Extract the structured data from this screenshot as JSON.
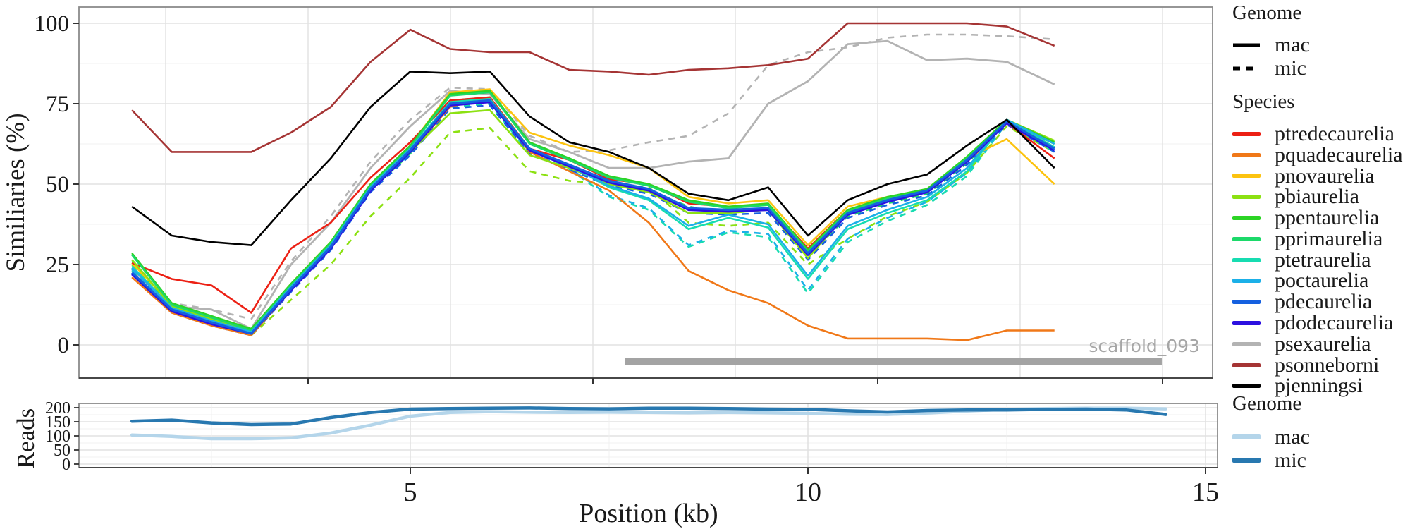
{
  "figure_title": "",
  "axes": {
    "main_panel": {
      "ylabel": "Similiaries (%)",
      "y_tick_labels": [
        "100",
        "75",
        "50",
        "25",
        "0"
      ]
    },
    "reads_panel": {
      "ylabel": "Reads",
      "y_tick_labels": [
        "200",
        "150",
        "100",
        "50",
        "0"
      ],
      "x_tick_labels": [
        "5",
        "10",
        "15"
      ],
      "xlabel": "Position (kb)"
    }
  },
  "legends": {
    "genome_top": {
      "title": "Genome",
      "items": [
        {
          "label": "mac",
          "style": "solid",
          "color": "#000000"
        },
        {
          "label": "mic",
          "style": "dashed",
          "color": "#000000"
        }
      ]
    },
    "species": {
      "title": "Species",
      "items": [
        {
          "label": "ptredecaurelia",
          "color": "#ec2014"
        },
        {
          "label": "pquadecaurelia",
          "color": "#f07818"
        },
        {
          "label": "pnovaurelia",
          "color": "#fcc30f"
        },
        {
          "label": "pbiaurelia",
          "color": "#8ce112"
        },
        {
          "label": "ppentaurelia",
          "color": "#2cd425"
        },
        {
          "label": "pprimaurelia",
          "color": "#1cd96a"
        },
        {
          "label": "ptetraurelia",
          "color": "#17dcb1"
        },
        {
          "label": "poctaurelia",
          "color": "#1bb0e8"
        },
        {
          "label": "pdecaurelia",
          "color": "#1560e0"
        },
        {
          "label": "pdodecaurelia",
          "color": "#2c10e0"
        },
        {
          "label": "psexaurelia",
          "color": "#b3b3b3"
        },
        {
          "label": "psonneborni",
          "color": "#a53434"
        },
        {
          "label": "pjenningsi",
          "color": "#000000"
        }
      ]
    },
    "genome_bottom": {
      "title": "Genome",
      "items": [
        {
          "label": "mac",
          "color": "#b4d5ea"
        },
        {
          "label": "mic",
          "color": "#2878b0"
        }
      ]
    }
  },
  "chart_data": [
    {
      "type": "line",
      "panel": "similarity",
      "ylabel": "Similiaries (%)",
      "ylim": [
        0,
        100
      ],
      "grid": true,
      "legend_position": "right",
      "annotation": {
        "label": "scaffold_093",
        "start_kb": 7.7,
        "end_kb": 14.45,
        "color": "#a3a3a3"
      },
      "x": [
        1.5,
        2,
        2.5,
        3,
        3.5,
        4,
        4.5,
        5,
        5.5,
        6,
        6.5,
        7,
        7.5,
        8,
        8.5,
        9,
        9.5,
        10,
        10.5,
        11,
        11.5,
        12,
        12.5,
        13.1
      ],
      "series": [
        {
          "name": "psexaurelia",
          "genome": "mic",
          "color": "#b3b3b3",
          "dashed": true,
          "width": 2.6,
          "values": [
            23,
            13,
            11,
            8,
            26,
            40,
            57,
            70,
            80,
            79.5,
            65,
            60,
            60.5,
            63,
            65,
            72,
            87,
            91,
            92.5,
            95.5,
            96.5,
            96.5,
            96,
            95
          ]
        },
        {
          "name": "psexaurelia",
          "genome": "mac",
          "color": "#b3b3b3",
          "dashed": false,
          "width": 2.8,
          "values": [
            23.5,
            12,
            11,
            5,
            25,
            38,
            55,
            68,
            79,
            78,
            64,
            60,
            55,
            55,
            57,
            58,
            75,
            82,
            93.5,
            94.5,
            88.5,
            89,
            88,
            81
          ]
        },
        {
          "name": "pbiaurelia",
          "genome": "mic",
          "color": "#8ce112",
          "dashed": true,
          "width": 2.6,
          "values": [
            25,
            11,
            7.5,
            3,
            14,
            25,
            40,
            52,
            66,
            67.5,
            54,
            51,
            50,
            49,
            38,
            37,
            38,
            25,
            33,
            40,
            44.5,
            53.5,
            68,
            60
          ]
        },
        {
          "name": "pprimaurelia",
          "genome": "mic",
          "color": "#1cd96a",
          "dashed": true,
          "width": 2.6,
          "values": [
            26,
            11,
            7,
            3,
            17,
            30,
            48,
            59.5,
            76,
            77,
            61,
            56,
            50.5,
            48,
            43,
            41,
            42,
            27.5,
            40,
            44,
            47,
            56.5,
            69,
            61.5
          ]
        },
        {
          "name": "ptetraurelia",
          "genome": "mic",
          "color": "#17dcb1",
          "dashed": true,
          "width": 2.6,
          "values": [
            23,
            10.5,
            6.5,
            3.5,
            17,
            30,
            48,
            59.5,
            74,
            75,
            59.5,
            54.5,
            46,
            42,
            30.5,
            35,
            33.5,
            16,
            32,
            38.5,
            43.5,
            52.5,
            69,
            60
          ]
        },
        {
          "name": "poctaurelia",
          "genome": "mic",
          "color": "#1bb0e8",
          "dashed": true,
          "width": 2.6,
          "values": [
            23.5,
            10.5,
            6.5,
            3.5,
            17,
            30,
            48,
            59.5,
            74.5,
            75.5,
            60,
            55,
            46.5,
            42.5,
            31,
            35.5,
            34.5,
            17,
            33,
            39.5,
            44.5,
            53.5,
            69,
            61
          ]
        },
        {
          "name": "pdecaurelia",
          "genome": "mic",
          "color": "#1560e0",
          "dashed": true,
          "width": 2.6,
          "values": [
            22,
            10,
            6,
            3,
            16.5,
            29.5,
            47.5,
            59,
            73.5,
            74.5,
            59.5,
            54.5,
            49.5,
            47,
            41,
            40.5,
            41,
            26.5,
            39.5,
            43.5,
            46.5,
            56,
            68.5,
            60
          ]
        },
        {
          "name": "pquadecaurelia",
          "genome": "mac",
          "color": "#f07818",
          "dashed": false,
          "width": 2.6,
          "values": [
            21,
            10,
            6,
            3,
            17,
            30,
            48,
            60,
            74,
            77,
            60,
            54,
            48,
            38,
            23,
            17,
            13,
            6,
            2,
            2,
            2,
            1.5,
            4.5,
            4.5
          ]
        },
        {
          "name": "pnovaurelia",
          "genome": "mac",
          "color": "#fcc30f",
          "dashed": false,
          "width": 2.6,
          "values": [
            25.5,
            12.5,
            8.5,
            4.5,
            19,
            32,
            50,
            62,
            78.5,
            79.5,
            66,
            62,
            59,
            55,
            46,
            44,
            45,
            31,
            43,
            46,
            48,
            58,
            64,
            50
          ]
        },
        {
          "name": "ptredecaurelia",
          "genome": "mac",
          "color": "#ec2014",
          "dashed": false,
          "width": 2.6,
          "values": [
            25.5,
            20.5,
            18.5,
            10,
            30,
            38,
            52,
            63,
            76,
            77,
            61,
            57.5,
            51.5,
            50,
            44,
            43,
            43.5,
            30,
            42,
            45.5,
            48,
            58,
            69,
            58
          ]
        },
        {
          "name": "pbiaurelia",
          "genome": "mac",
          "color": "#8ce112",
          "dashed": false,
          "width": 2.6,
          "values": [
            26.5,
            12,
            8,
            4.5,
            18,
            31,
            49,
            60,
            72,
            73,
            59,
            55,
            50,
            47.5,
            41,
            41,
            42,
            27,
            41,
            45,
            48,
            57,
            70,
            63.5
          ]
        },
        {
          "name": "ppentaurelia",
          "genome": "mac",
          "color": "#2cd425",
          "dashed": false,
          "width": 2.6,
          "values": [
            28.5,
            13,
            9,
            5,
            19,
            32,
            50,
            62,
            78,
            79,
            63,
            58,
            52.5,
            50,
            45,
            43,
            44,
            29.5,
            42,
            46,
            48.5,
            58.5,
            70,
            63
          ]
        },
        {
          "name": "pprimaurelia",
          "genome": "mac",
          "color": "#1cd96a",
          "dashed": false,
          "width": 2.6,
          "values": [
            28,
            12.5,
            8.5,
            4.5,
            18.5,
            31.5,
            49.5,
            61.5,
            77.5,
            78.5,
            62.5,
            57.5,
            52,
            49.5,
            44.5,
            42.5,
            43.5,
            29,
            41.5,
            45.5,
            48,
            58,
            69.5,
            62.5
          ]
        },
        {
          "name": "ptetraurelia",
          "genome": "mac",
          "color": "#17dcb1",
          "dashed": false,
          "width": 2.6,
          "values": [
            24.5,
            11.5,
            7.5,
            4,
            18,
            31,
            49,
            61,
            75.5,
            76.5,
            61,
            56,
            49,
            45,
            36,
            39.5,
            36.5,
            20.5,
            36,
            41,
            45,
            54,
            70,
            61.5
          ]
        },
        {
          "name": "poctaurelia",
          "genome": "mac",
          "color": "#1bb0e8",
          "dashed": false,
          "width": 2.6,
          "values": [
            24,
            11.5,
            7.5,
            4,
            18,
            31,
            49,
            61,
            75,
            76,
            60.5,
            55.5,
            49.5,
            45.5,
            37,
            40.5,
            37.5,
            21.5,
            37,
            42,
            46,
            55,
            70,
            62.5
          ]
        },
        {
          "name": "pdodecaurelia",
          "genome": "mac",
          "color": "#2c10e0",
          "dashed": false,
          "width": 3.2,
          "values": [
            22,
            10.5,
            6.5,
            3.5,
            17,
            30,
            48,
            60,
            74.5,
            75.5,
            60.5,
            55.5,
            50.5,
            48,
            42,
            41.5,
            42,
            28,
            40.5,
            44.5,
            47.5,
            57,
            69,
            60.5
          ]
        },
        {
          "name": "pdecaurelia",
          "genome": "mac",
          "color": "#1560e0",
          "dashed": false,
          "width": 3.2,
          "values": [
            22.5,
            11,
            7,
            3.5,
            17.5,
            30.5,
            48.5,
            60.5,
            75,
            76,
            61,
            56,
            51,
            48.5,
            42.5,
            42,
            42.5,
            28.5,
            41,
            45,
            48,
            57.5,
            69.5,
            61
          ]
        },
        {
          "name": "pjenningsi",
          "genome": "mac",
          "color": "#000000",
          "dashed": false,
          "width": 2.6,
          "values": [
            43,
            34,
            32,
            31,
            45,
            58,
            74,
            85,
            84.5,
            85,
            71,
            63,
            60,
            55,
            47,
            45,
            49,
            34,
            45,
            50,
            53,
            62,
            70,
            55
          ]
        },
        {
          "name": "psonneborni",
          "genome": "mac",
          "color": "#a53434",
          "dashed": false,
          "width": 2.6,
          "values": [
            73,
            60,
            60,
            60,
            66,
            74,
            88,
            98,
            92,
            91,
            91,
            85.5,
            85,
            84,
            85.5,
            86,
            87,
            89,
            100,
            100,
            100,
            100,
            99,
            93
          ]
        }
      ]
    },
    {
      "type": "line",
      "panel": "reads",
      "ylabel": "Reads",
      "xlabel": "Position (kb)",
      "ylim": [
        0,
        200
      ],
      "grid": true,
      "legend_position": "right",
      "x": [
        1.5,
        2,
        2.5,
        3,
        3.5,
        4,
        4.5,
        5,
        5.5,
        6,
        6.5,
        7,
        7.5,
        8,
        8.5,
        9,
        9.5,
        10,
        10.5,
        11,
        11.5,
        12,
        12.5,
        13,
        13.5,
        14,
        14.5
      ],
      "series": [
        {
          "name": "mac",
          "genome": "mac",
          "color": "#b4d5ea",
          "dashed": false,
          "width": 4.5,
          "values": [
            103,
            98,
            90,
            90,
            93,
            110,
            138,
            170,
            183,
            186,
            184,
            183,
            184,
            183,
            182,
            183,
            182,
            180,
            177,
            176,
            181,
            188,
            194,
            197,
            198,
            198,
            196
          ]
        },
        {
          "name": "mic",
          "genome": "mic",
          "color": "#2878b0",
          "dashed": false,
          "width": 4.5,
          "values": [
            152,
            156,
            146,
            140,
            142,
            165,
            183,
            195,
            197,
            198,
            199,
            197,
            196,
            198,
            198,
            197,
            195,
            194,
            189,
            185,
            190,
            192,
            192,
            194,
            195,
            192,
            176
          ]
        }
      ]
    }
  ]
}
